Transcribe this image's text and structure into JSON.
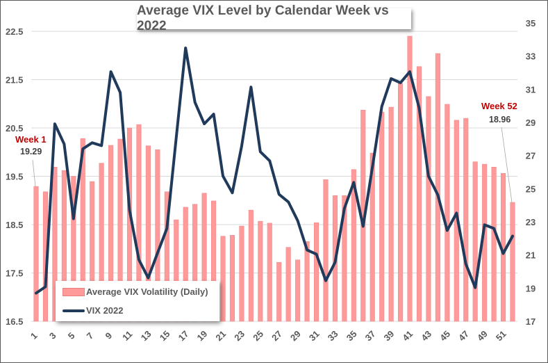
{
  "chart_data": {
    "type": "bar",
    "title": "Average VIX Level by Calendar Week vs 2022",
    "xlabel": "",
    "ylabel_left": "",
    "ylabel_right": "",
    "categories": [
      1,
      2,
      3,
      4,
      5,
      6,
      7,
      8,
      9,
      10,
      11,
      12,
      13,
      14,
      15,
      16,
      17,
      18,
      19,
      20,
      21,
      22,
      23,
      24,
      25,
      26,
      27,
      28,
      29,
      30,
      31,
      32,
      33,
      34,
      35,
      36,
      37,
      38,
      39,
      40,
      41,
      42,
      43,
      44,
      45,
      46,
      47,
      48,
      49,
      50,
      51,
      52
    ],
    "x_tick_labels": [
      "1",
      "3",
      "5",
      "7",
      "9",
      "11",
      "13",
      "15",
      "17",
      "19",
      "21",
      "23",
      "25",
      "27",
      "29",
      "31",
      "33",
      "35",
      "37",
      "39",
      "41",
      "43",
      "45",
      "47",
      "49",
      "51"
    ],
    "y_left": {
      "min": 16.5,
      "max": 22.5,
      "ticks": [
        "16.5",
        "17.5",
        "18.5",
        "19.5",
        "20.5",
        "21.5",
        "22.5"
      ]
    },
    "y_right": {
      "min": 17,
      "max": 35,
      "ticks": [
        "17",
        "19",
        "21",
        "23",
        "25",
        "27",
        "29",
        "31",
        "33",
        "35"
      ]
    },
    "grid": true,
    "legend_position": "bottom-left",
    "series": [
      {
        "name": "Average VIX Volatility (Daily)",
        "type": "bar",
        "axis": "left",
        "color": "#ff9a9a",
        "values": [
          19.29,
          19.18,
          19.69,
          19.62,
          19.5,
          20.28,
          19.39,
          19.77,
          20.14,
          20.27,
          20.5,
          20.57,
          20.13,
          20.05,
          19.18,
          18.6,
          18.86,
          18.92,
          19.15,
          18.99,
          18.26,
          18.28,
          18.47,
          18.8,
          18.57,
          18.53,
          17.72,
          18.03,
          17.77,
          18.15,
          18.54,
          19.43,
          19.1,
          19.1,
          19.64,
          20.87,
          19.98,
          20.83,
          20.93,
          21.42,
          22.4,
          21.77,
          21.15,
          22.04,
          20.99,
          20.66,
          20.7,
          19.8,
          19.75,
          19.69,
          19.56,
          18.96
        ]
      },
      {
        "name": "VIX 2022",
        "type": "line",
        "axis": "right",
        "color": "#203a5c",
        "values": [
          18.7,
          19.08,
          28.91,
          27.69,
          23.19,
          27.4,
          27.77,
          27.6,
          32.06,
          30.8,
          23.7,
          20.71,
          19.62,
          21.13,
          22.6,
          28.1,
          33.49,
          30.21,
          28.91,
          29.5,
          25.76,
          24.75,
          27.56,
          31.13,
          27.23,
          26.68,
          24.66,
          24.2,
          23.07,
          21.3,
          21.05,
          19.45,
          20.55,
          23.82,
          25.38,
          22.73,
          26.3,
          29.96,
          31.64,
          31.39,
          32.06,
          29.87,
          25.76,
          24.62,
          22.48,
          23.53,
          20.46,
          19.03,
          22.82,
          22.6,
          21.09,
          22.14
        ]
      }
    ],
    "annotations": [
      {
        "label": "Week 1",
        "value": "19.29",
        "week": 1
      },
      {
        "label": "Week 52",
        "value": "18.96",
        "week": 52
      }
    ]
  }
}
